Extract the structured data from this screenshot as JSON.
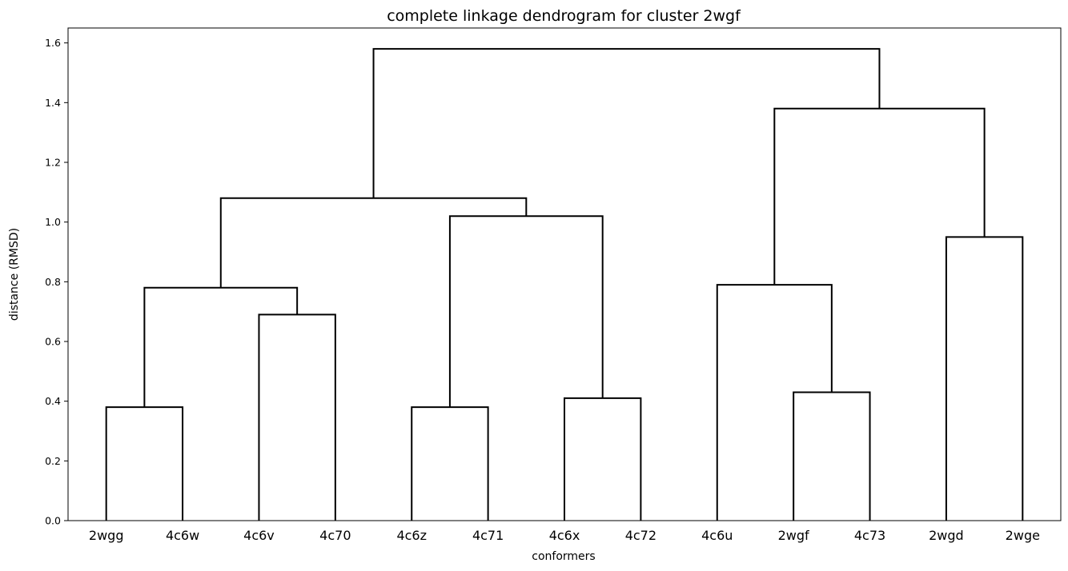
{
  "chart_data": {
    "type": "dendrogram",
    "title": "complete linkage dendrogram for cluster 2wgf",
    "xlabel": "conformers",
    "ylabel": "distance (RMSD)",
    "ylim": [
      0,
      1.65
    ],
    "yticks": [
      "0.0",
      "0.2",
      "0.4",
      "0.6",
      "0.8",
      "1.0",
      "1.2",
      "1.4",
      "1.6"
    ],
    "leaves": [
      "2wgg",
      "4c6w",
      "4c6v",
      "4c70",
      "4c6z",
      "4c71",
      "4c6x",
      "4c72",
      "4c6u",
      "2wgf",
      "4c73",
      "2wgd",
      "2wge"
    ],
    "merges": [
      {
        "left": "2wgg",
        "right": "4c6w",
        "height": 0.38
      },
      {
        "left": "4c6v",
        "right": "4c70",
        "height": 0.69
      },
      {
        "left": "m0",
        "right": "m1",
        "height": 0.78
      },
      {
        "left": "4c6z",
        "right": "4c71",
        "height": 0.38
      },
      {
        "left": "4c6x",
        "right": "4c72",
        "height": 0.41
      },
      {
        "left": "m3",
        "right": "m4",
        "height": 1.02
      },
      {
        "left": "m2",
        "right": "m5",
        "height": 1.08
      },
      {
        "left": "2wgf",
        "right": "4c73",
        "height": 0.43
      },
      {
        "left": "4c6u",
        "right": "m7",
        "height": 0.79
      },
      {
        "left": "2wgd",
        "right": "2wge",
        "height": 0.95
      },
      {
        "left": "m8",
        "right": "m9",
        "height": 1.38
      },
      {
        "left": "m6",
        "right": "m10",
        "height": 1.58
      }
    ],
    "grid": false,
    "line_color": "#000000"
  }
}
